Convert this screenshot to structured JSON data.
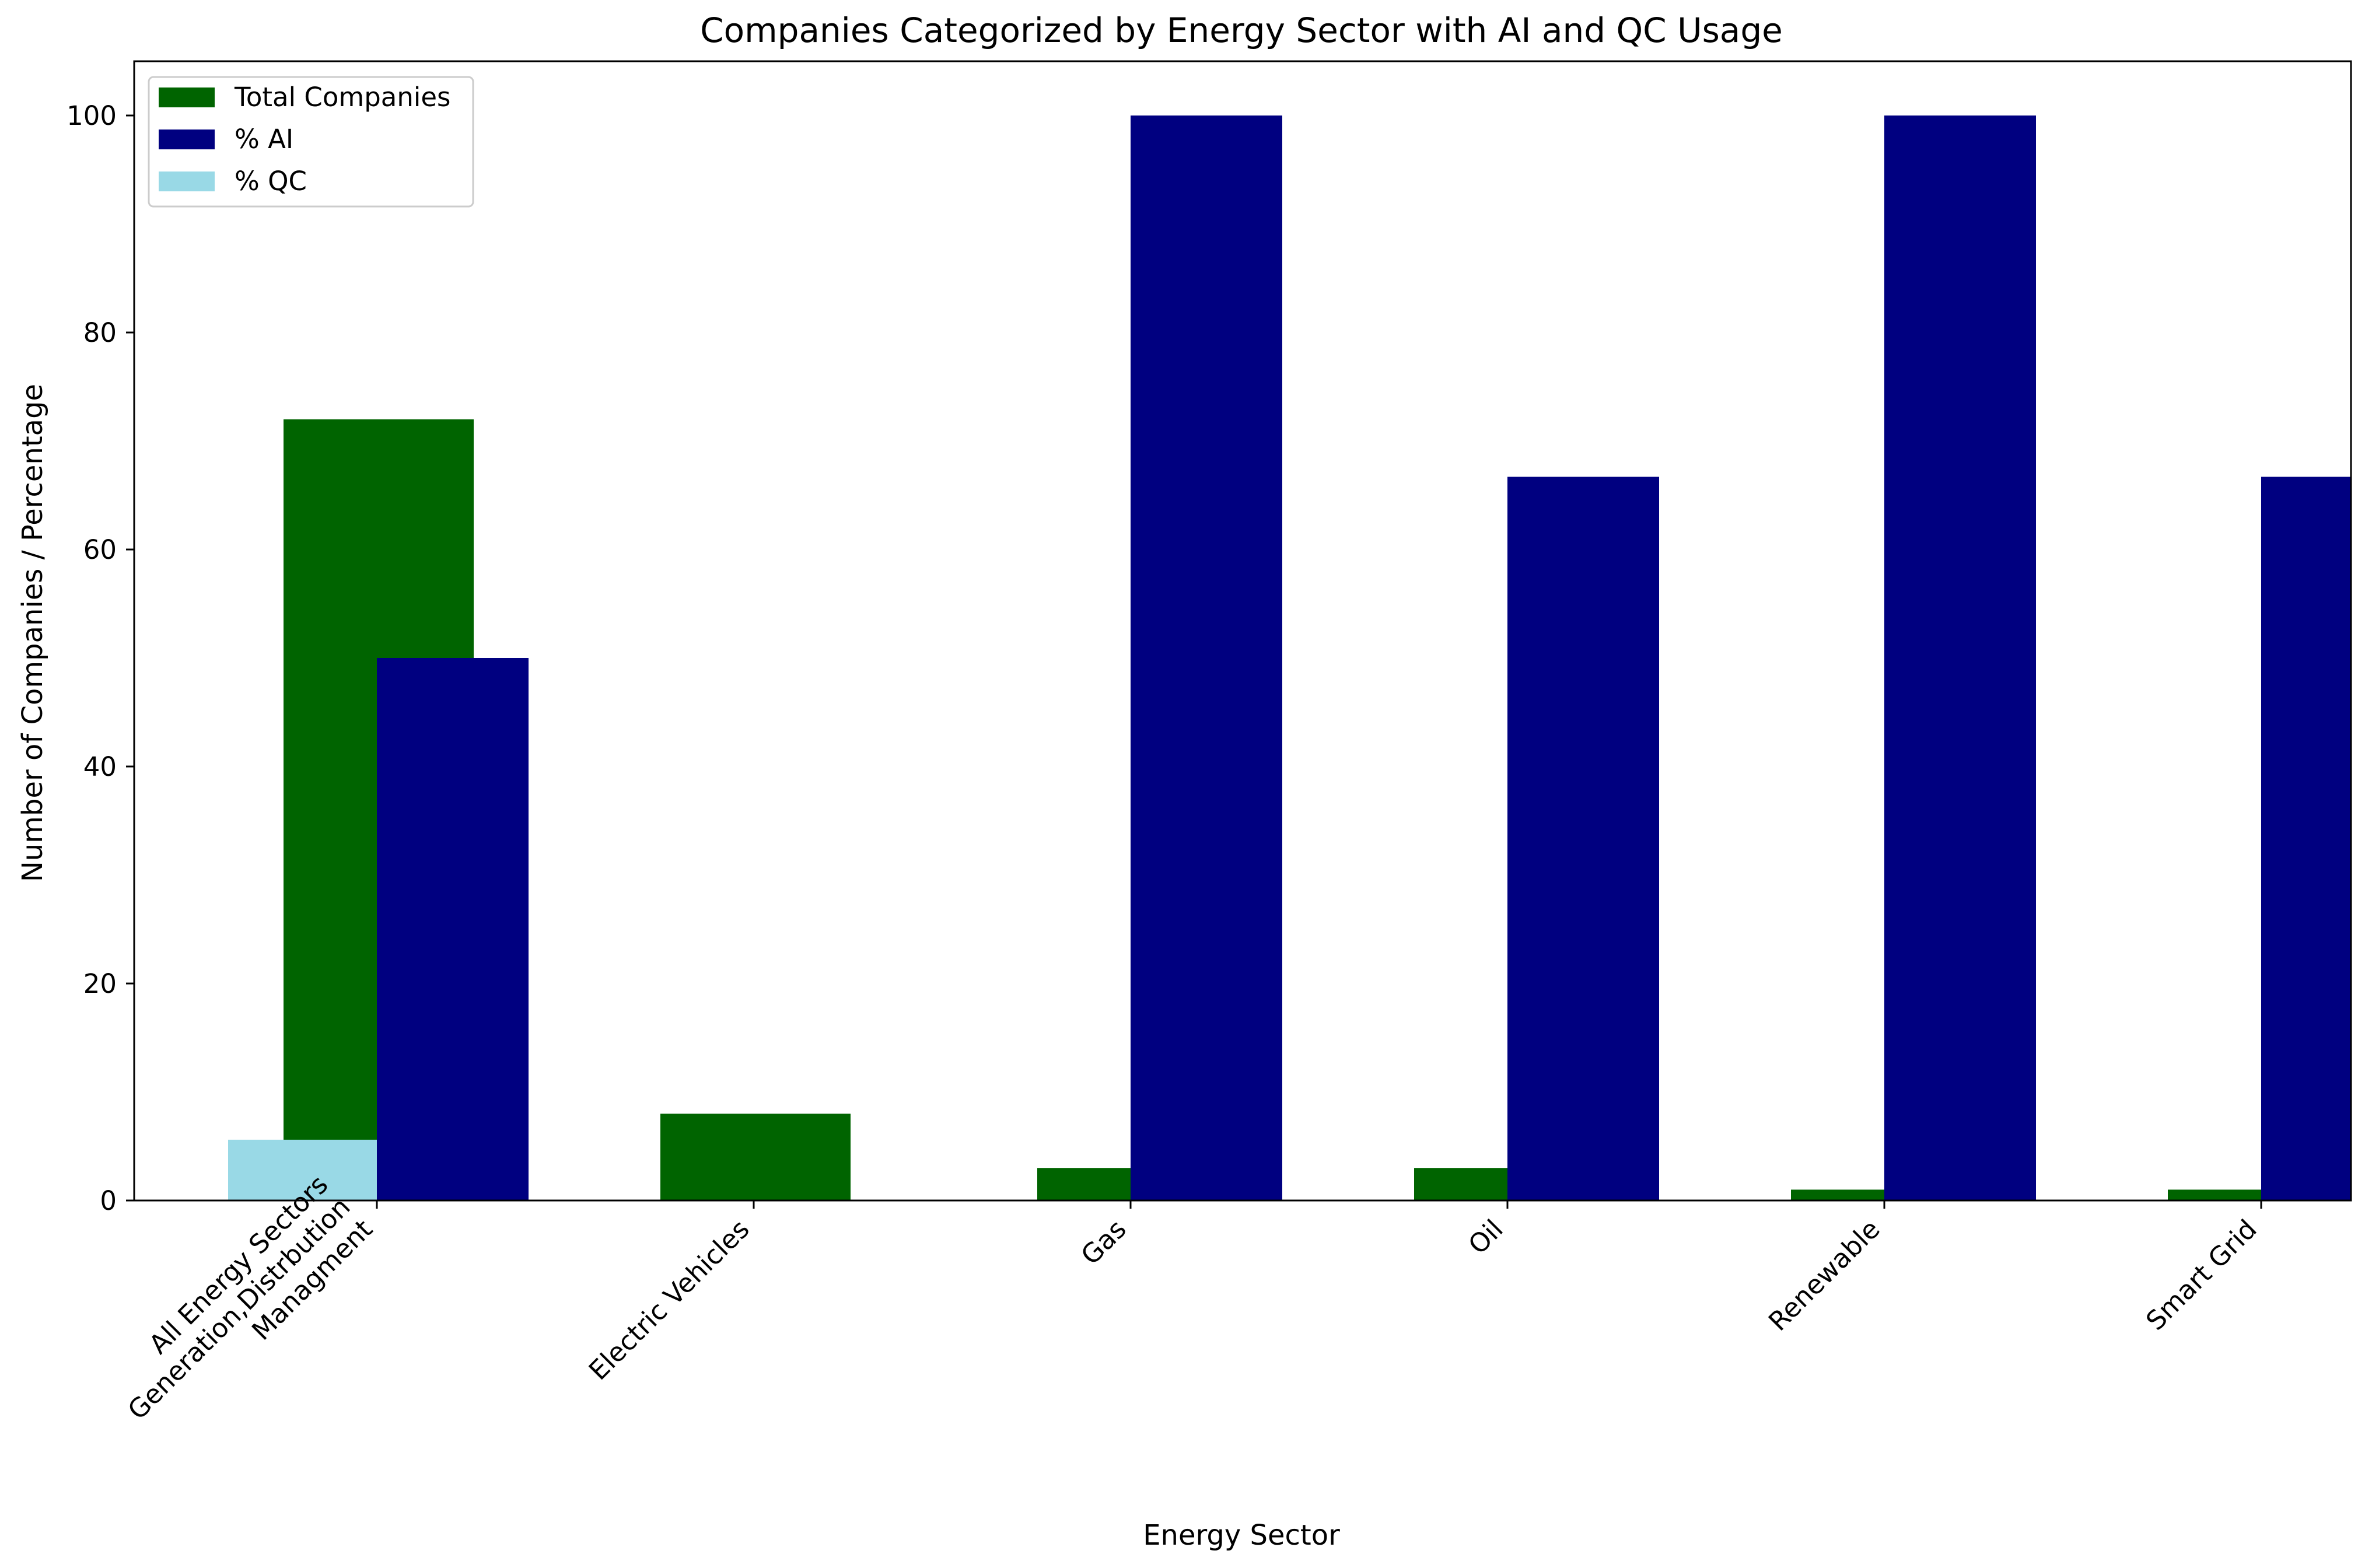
{
  "chart_data": {
    "type": "bar",
    "title": "Companies Categorized by Energy Sector with AI and QC Usage",
    "xlabel": "Energy Sector",
    "ylabel": "Number of Companies / Percentage",
    "ylim": [
      0,
      105
    ],
    "yticks": [
      "0",
      "20",
      "40",
      "60",
      "80",
      "100"
    ],
    "grid": false,
    "legend_position": "top-left",
    "categories": [
      [
        "All Energy Sectors",
        "Generation,Distrbution",
        "Managment"
      ],
      [
        "Electric Vehicles"
      ],
      [
        "Gas"
      ],
      [
        "Oil"
      ],
      [
        "Renewable"
      ],
      [
        "Smart Grid"
      ]
    ],
    "series": [
      {
        "name": "Total Companies",
        "color": "#006400",
        "values": [
          72,
          8,
          3,
          3,
          1,
          1
        ]
      },
      {
        "name": "% AI",
        "color": "#000080",
        "values": [
          50,
          0,
          100,
          66.7,
          100,
          66.7
        ]
      },
      {
        "name": "% QC",
        "color": "#99d9e6",
        "values": [
          5.6,
          0,
          0,
          0,
          0,
          0
        ]
      }
    ]
  }
}
